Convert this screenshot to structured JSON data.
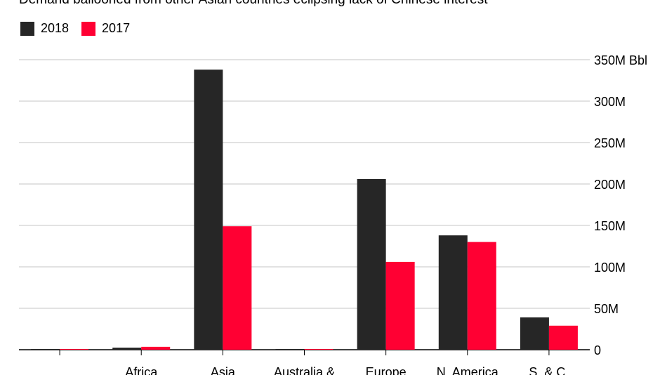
{
  "subtitle": "Demand ballooned from other Asian countries eclipsing lack of Chinese interest",
  "legend": [
    {
      "label": "2018",
      "color": "#262626"
    },
    {
      "label": "2017",
      "color": "#ff0033"
    }
  ],
  "chart_data": {
    "type": "bar",
    "subtitle": "Demand ballooned from other Asian countries eclipsing lack of Chinese interest",
    "categories": [
      "",
      "Africa",
      "Asia",
      "Australia &",
      "Europe",
      "N. America",
      "S. & C."
    ],
    "series": [
      {
        "name": "2018",
        "color": "#262626",
        "values": [
          0.3,
          2.5,
          338,
          0.3,
          206,
          138,
          39
        ]
      },
      {
        "name": "2017",
        "color": "#ff0033",
        "values": [
          0.3,
          3.5,
          149,
          0.3,
          106,
          130,
          29
        ]
      }
    ],
    "ylim": [
      0,
      350
    ],
    "yticks": [
      0,
      50,
      100,
      150,
      200,
      250,
      300,
      350
    ],
    "ytick_labels": [
      "0",
      "50M",
      "100M",
      "150M",
      "200M",
      "250M",
      "300M",
      "350M Bbl"
    ],
    "grid": true,
    "y_axis_position": "right",
    "legend_position": "top-left"
  }
}
